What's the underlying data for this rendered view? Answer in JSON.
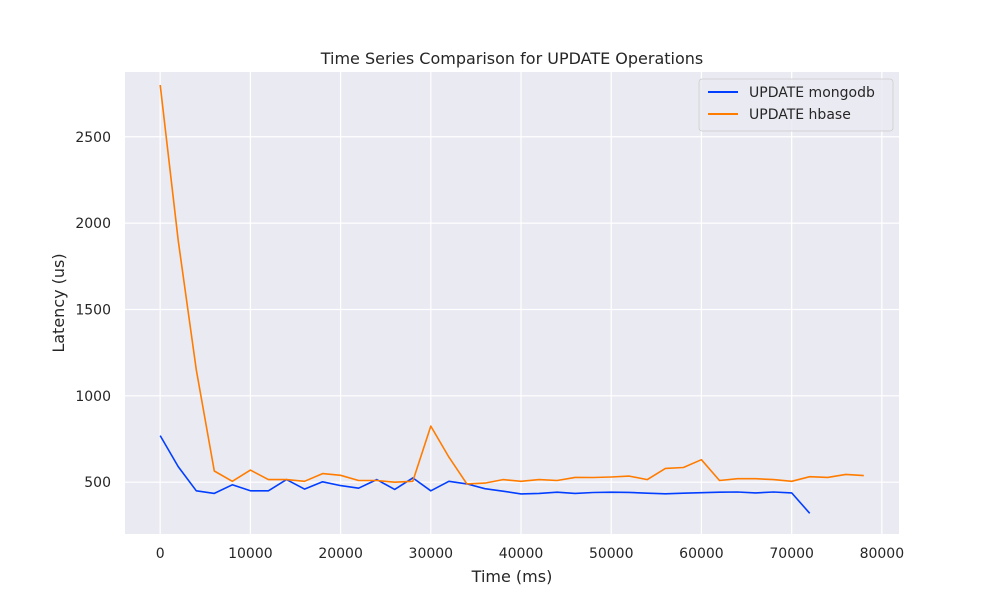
{
  "chart_data": {
    "type": "line",
    "title": "Time Series Comparison for UPDATE Operations",
    "xlabel": "Time (ms)",
    "ylabel": "Latency (us)",
    "xlim": [
      -3900,
      81900
    ],
    "ylim": [
      200,
      2875
    ],
    "xticks": [
      0,
      10000,
      20000,
      30000,
      40000,
      50000,
      60000,
      70000,
      80000
    ],
    "yticks": [
      500,
      1000,
      1500,
      2000,
      2500
    ],
    "grid": true,
    "legend_position": "top-right",
    "colors": {
      "background": "#eaeaf2",
      "grid": "#ffffff",
      "text": "#262626"
    },
    "series": [
      {
        "name": "UPDATE mongodb",
        "color": "#023eff",
        "x": [
          0,
          2000,
          4000,
          6000,
          8000,
          10000,
          12000,
          14000,
          16000,
          18000,
          20000,
          22000,
          24000,
          26000,
          28000,
          30000,
          32000,
          34000,
          36000,
          38000,
          40000,
          42000,
          44000,
          46000,
          48000,
          50000,
          52000,
          54000,
          56000,
          58000,
          60000,
          62000,
          64000,
          66000,
          68000,
          70000,
          72000
        ],
        "values": [
          770,
          590,
          450,
          435,
          485,
          450,
          450,
          515,
          460,
          502,
          480,
          465,
          515,
          458,
          525,
          450,
          505,
          490,
          462,
          448,
          432,
          435,
          442,
          435,
          440,
          442,
          441,
          436,
          433,
          436,
          439,
          442,
          443,
          438,
          443,
          438,
          320
        ]
      },
      {
        "name": "UPDATE hbase",
        "color": "#ff7c00",
        "x": [
          0,
          2000,
          4000,
          6000,
          8000,
          10000,
          12000,
          14000,
          16000,
          18000,
          20000,
          22000,
          24000,
          26000,
          28000,
          30000,
          32000,
          34000,
          36000,
          38000,
          40000,
          42000,
          44000,
          46000,
          48000,
          50000,
          52000,
          54000,
          56000,
          58000,
          60000,
          62000,
          64000,
          66000,
          68000,
          70000,
          72000,
          74000,
          76000,
          78000
        ],
        "values": [
          2800,
          1900,
          1150,
          565,
          505,
          570,
          515,
          515,
          505,
          550,
          540,
          510,
          510,
          500,
          505,
          825,
          645,
          490,
          495,
          515,
          505,
          515,
          510,
          528,
          527,
          530,
          535,
          515,
          580,
          585,
          630,
          510,
          520,
          520,
          515,
          505,
          532,
          528,
          545,
          538
        ]
      }
    ]
  }
}
